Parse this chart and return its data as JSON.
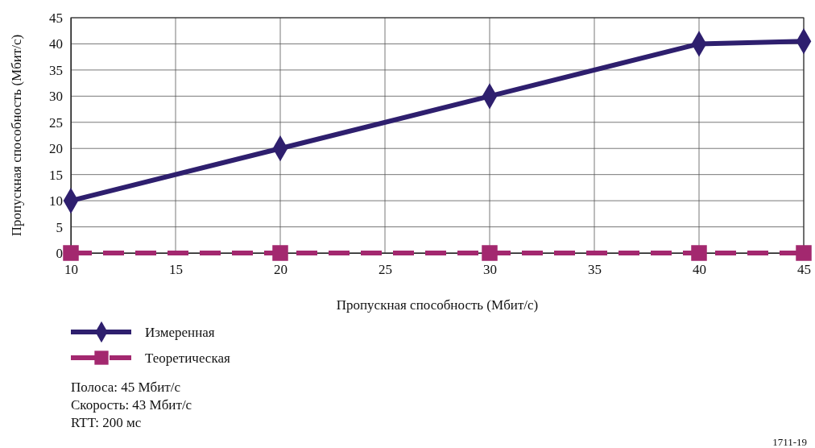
{
  "chart_data": {
    "type": "line",
    "xlabel": "Пропускная способность (Мбит/с)",
    "ylabel": "Пропускная способность (Мбит/с)",
    "x": [
      10,
      20,
      30,
      40,
      45
    ],
    "series": [
      {
        "name": "Измеренная",
        "color": "#2e1f6e",
        "values": [
          10,
          20,
          30,
          40,
          40.5
        ],
        "marker": "diamond",
        "line_style": "solid"
      },
      {
        "name": "Теоретическая",
        "color": "#a3286f",
        "values": [
          0,
          0,
          0,
          0,
          0
        ],
        "marker": "square",
        "line_style": "dashed"
      }
    ],
    "xlim": [
      10,
      45
    ],
    "xticks": [
      10,
      15,
      20,
      25,
      30,
      35,
      40,
      45
    ],
    "ylim": [
      0,
      45
    ],
    "yticks": [
      0,
      5,
      10,
      15,
      20,
      25,
      30,
      35,
      40,
      45
    ],
    "grid": true,
    "legend": "bottom left",
    "annotations": [
      "Полоса: 45 Мбит/с",
      "Скорость: 43 Мбит/с",
      "RTT: 200 мс",
      "1711-19"
    ]
  }
}
